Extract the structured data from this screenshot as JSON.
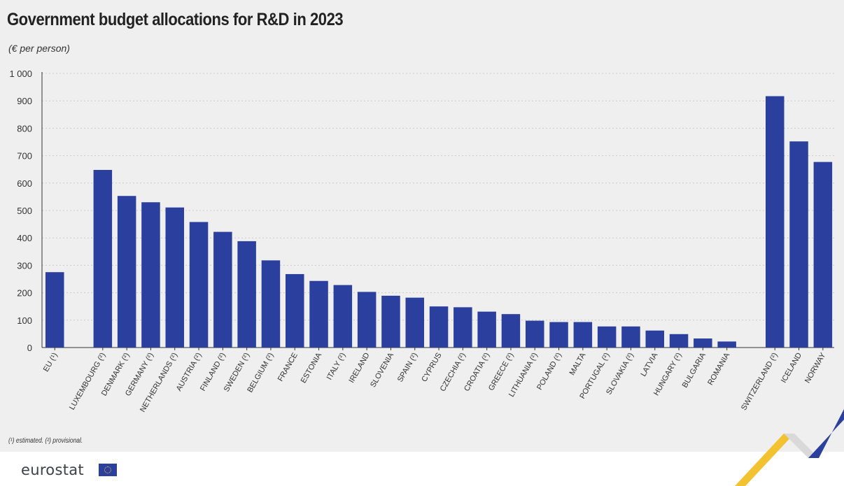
{
  "title": "Government budget allocations for R&D in 2023",
  "subtitle": "(€ per person)",
  "footnote": "(¹) estimated. (²) provisional.",
  "logo_text": "eurostat",
  "colors": {
    "bar": "#2b3f9e",
    "background": "#efefef",
    "grid": "#cccccc",
    "axis": "#333333"
  },
  "chart_data": {
    "type": "bar",
    "categories": [
      "EU (¹)",
      "LUXEMBOURG (²)",
      "DENMARK (²)",
      "GERMANY (²)",
      "NETHERLANDS (²)",
      "AUSTRIA (²)",
      "FINLAND (²)",
      "SWEDEN (²)",
      "BELGIUM (²)",
      "FRANCE",
      "ESTONIA",
      "ITALY (²)",
      "IRELAND",
      "SLOVENIA",
      "SPAIN (²)",
      "CYPRUS",
      "CZECHIA (²)",
      "CROATIA (²)",
      "GREECE (²)",
      "LITHUANIA (²)",
      "POLAND (²)",
      "MALTA",
      "PORTUGAL (²)",
      "SLOVAKIA (²)",
      "LATVIA",
      "HUNGARY (²)",
      "BULGARIA",
      "ROMANIA",
      "SWITZERLAND (²)",
      "ICELAND",
      "NORWAY"
    ],
    "values": [
      275,
      648,
      553,
      530,
      511,
      458,
      422,
      388,
      318,
      268,
      243,
      228,
      203,
      189,
      182,
      150,
      147,
      131,
      122,
      98,
      93,
      93,
      77,
      77,
      62,
      49,
      33,
      22,
      917,
      752,
      677
    ],
    "groups": [
      [
        0
      ],
      [
        1,
        2,
        3,
        4,
        5,
        6,
        7,
        8,
        9,
        10,
        11,
        12,
        13,
        14,
        15,
        16,
        17,
        18,
        19,
        20,
        21,
        22,
        23,
        24,
        25,
        26,
        27
      ],
      [
        28,
        29,
        30
      ]
    ],
    "title": "Government budget allocations for R&D in 2023",
    "subtitle": "(€ per person)",
    "xlabel": "",
    "ylabel": "",
    "ylim": [
      0,
      1000
    ],
    "yticks": [
      0,
      100,
      200,
      300,
      400,
      500,
      600,
      700,
      800,
      900,
      1000
    ],
    "ytick_labels": [
      "0",
      "100",
      "200",
      "300",
      "400",
      "500",
      "600",
      "700",
      "800",
      "900",
      "1 000"
    ],
    "grid": true,
    "legend": "none"
  }
}
